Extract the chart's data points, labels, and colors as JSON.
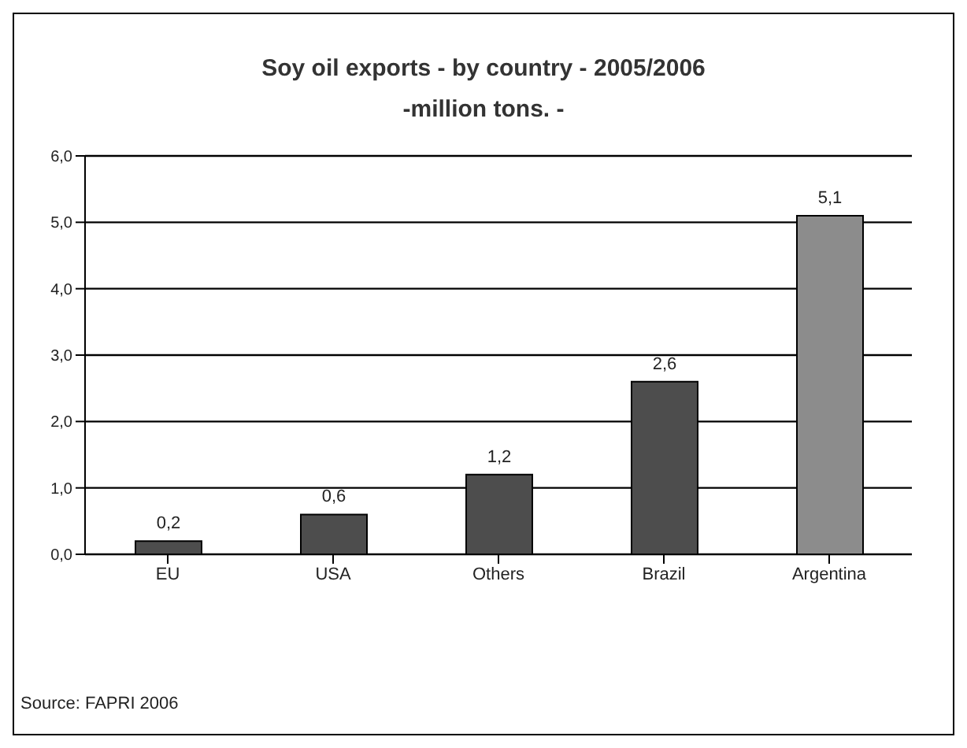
{
  "chart_data": {
    "type": "bar",
    "title": "Soy oil exports - by country - 2005/2006",
    "subtitle": "-million tons. -",
    "categories": [
      "EU",
      "USA",
      "Others",
      "Brazil",
      "Argentina"
    ],
    "values": [
      0.2,
      0.6,
      1.2,
      2.6,
      5.1
    ],
    "colors": [
      "#4d4d4d",
      "#4d4d4d",
      "#4d4d4d",
      "#4d4d4d",
      "#8c8c8c"
    ],
    "value_labels": [
      "0,2",
      "0,6",
      "1,2",
      "2,6",
      "5,1"
    ],
    "ylim": [
      0,
      6
    ],
    "yticks": [
      {
        "value": 0,
        "label": "0,0"
      },
      {
        "value": 1,
        "label": "1,0"
      },
      {
        "value": 2,
        "label": "2,0"
      },
      {
        "value": 3,
        "label": "3,0"
      },
      {
        "value": 4,
        "label": "4,0"
      },
      {
        "value": 5,
        "label": "5,0"
      },
      {
        "value": 6,
        "label": "6,0"
      }
    ],
    "grid": "y",
    "annotations": [
      "Source: FAPRI 2006"
    ]
  }
}
